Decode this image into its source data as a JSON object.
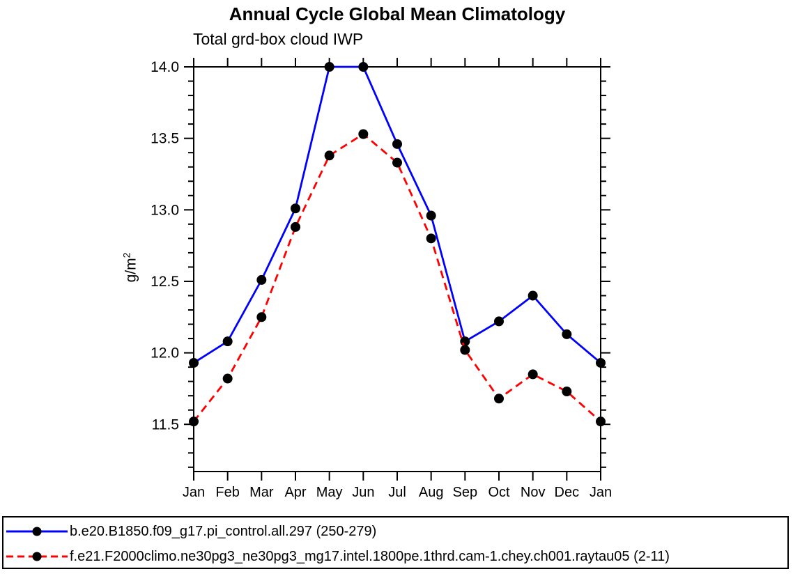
{
  "title": "Annual Cycle Global Mean Climatology",
  "subtitle": "Total grd-box cloud IWP",
  "ylabel": {
    "base": "g/m",
    "sup": "2"
  },
  "colors": {
    "series1": "#0000ff",
    "series2": "#ff0000",
    "marker": "#000000",
    "axis": "#000000",
    "background": "#ffffff"
  },
  "chart_data": {
    "type": "line",
    "title": "Annual Cycle Global Mean Climatology",
    "subtitle": "Total grd-box cloud IWP",
    "ylabel": "g/m²",
    "categories": [
      "Jan",
      "Feb",
      "Mar",
      "Apr",
      "May",
      "Jun",
      "Jul",
      "Aug",
      "Sep",
      "Oct",
      "Nov",
      "Dec",
      "Jan"
    ],
    "series": [
      {
        "name": "b.e20.B1850.f09_g17.pi_control.all.297 (250-279)",
        "color": "#0000ff",
        "style": "solid",
        "marker": "filled-circle",
        "values": [
          11.93,
          12.08,
          12.51,
          13.01,
          14.0,
          14.0,
          13.46,
          12.96,
          12.08,
          12.22,
          12.4,
          12.13,
          11.93
        ]
      },
      {
        "name": "f.e21.F2000climo.ne30pg3_ne30pg3_mg17.intel.1800pe.1thrd.cam-1.chey.ch001.raytau05 (2-11)",
        "color": "#ff0000",
        "style": "dashed",
        "marker": "filled-circle",
        "values": [
          11.52,
          11.82,
          12.25,
          12.88,
          13.38,
          13.53,
          13.33,
          12.8,
          12.02,
          11.68,
          11.85,
          11.73,
          11.52
        ]
      }
    ],
    "y_major_ticks": [
      11.5,
      12.0,
      12.5,
      13.0,
      13.5,
      14.0
    ],
    "y_tick_labels": [
      "11.5",
      "12.0",
      "12.5",
      "13.0",
      "13.5",
      "14.0"
    ],
    "y_minor_step": 0.1,
    "ylim": [
      11.17,
      14.0
    ],
    "grid": false,
    "tick_direction": "out",
    "legend_position": "bottom-box"
  }
}
